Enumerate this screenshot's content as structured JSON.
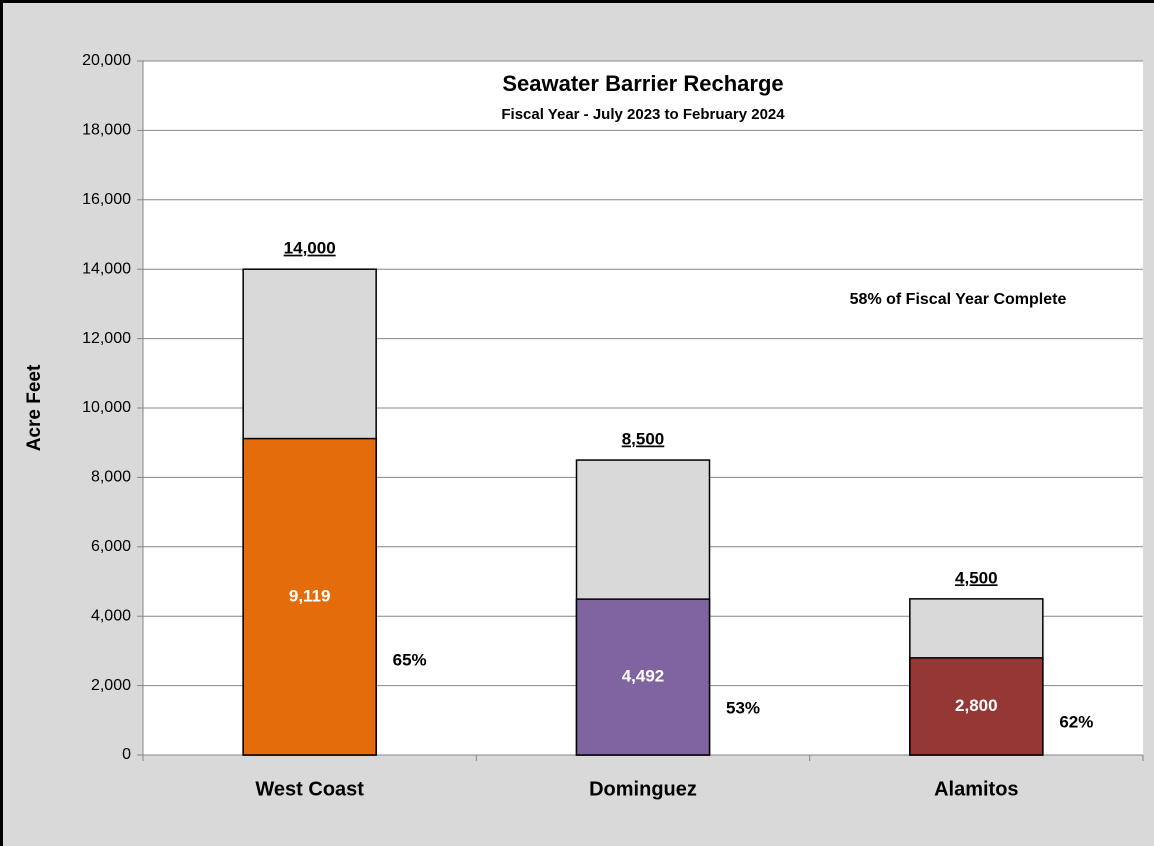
{
  "chart_data": {
    "type": "bullet-bar",
    "title": "Seawater Barrier Recharge",
    "subtitle": "Fiscal Year - July 2023 to February 2024",
    "annotation": "58% of Fiscal Year Complete",
    "y_label": "Acre Feet",
    "categories": [
      "West Coast",
      "Dominguez",
      "Alamitos"
    ],
    "targets": [
      14000,
      8500,
      4500
    ],
    "target_labels": [
      "14,000",
      "8,500",
      "4,500"
    ],
    "target_color": "#d9d9d9",
    "values": [
      9119,
      4492,
      2800
    ],
    "value_labels": [
      "9,119",
      "4,492",
      "2,800"
    ],
    "colors": [
      "#e46c0a",
      "#8064a2",
      "#953735"
    ],
    "percent_labels": [
      "65%",
      "53%",
      "62%"
    ],
    "ylim": [
      0,
      20000
    ],
    "yticks": [
      0,
      {
        "value": 2000,
        "label": "2,000"
      },
      {
        "value": 4000,
        "label": "4,000"
      },
      {
        "value": 6000,
        "label": "6,000"
      },
      {
        "value": 8000,
        "label": "8,000"
      },
      {
        "value": 10000,
        "label": "10,000"
      },
      {
        "value": 12000,
        "label": "12,000"
      },
      {
        "value": 14000,
        "label": "14,000"
      },
      {
        "value": 16000,
        "label": "16,000"
      },
      {
        "value": 18000,
        "label": "18,000"
      },
      {
        "value": 20000,
        "label": "20,000"
      }
    ],
    "grid": true
  }
}
